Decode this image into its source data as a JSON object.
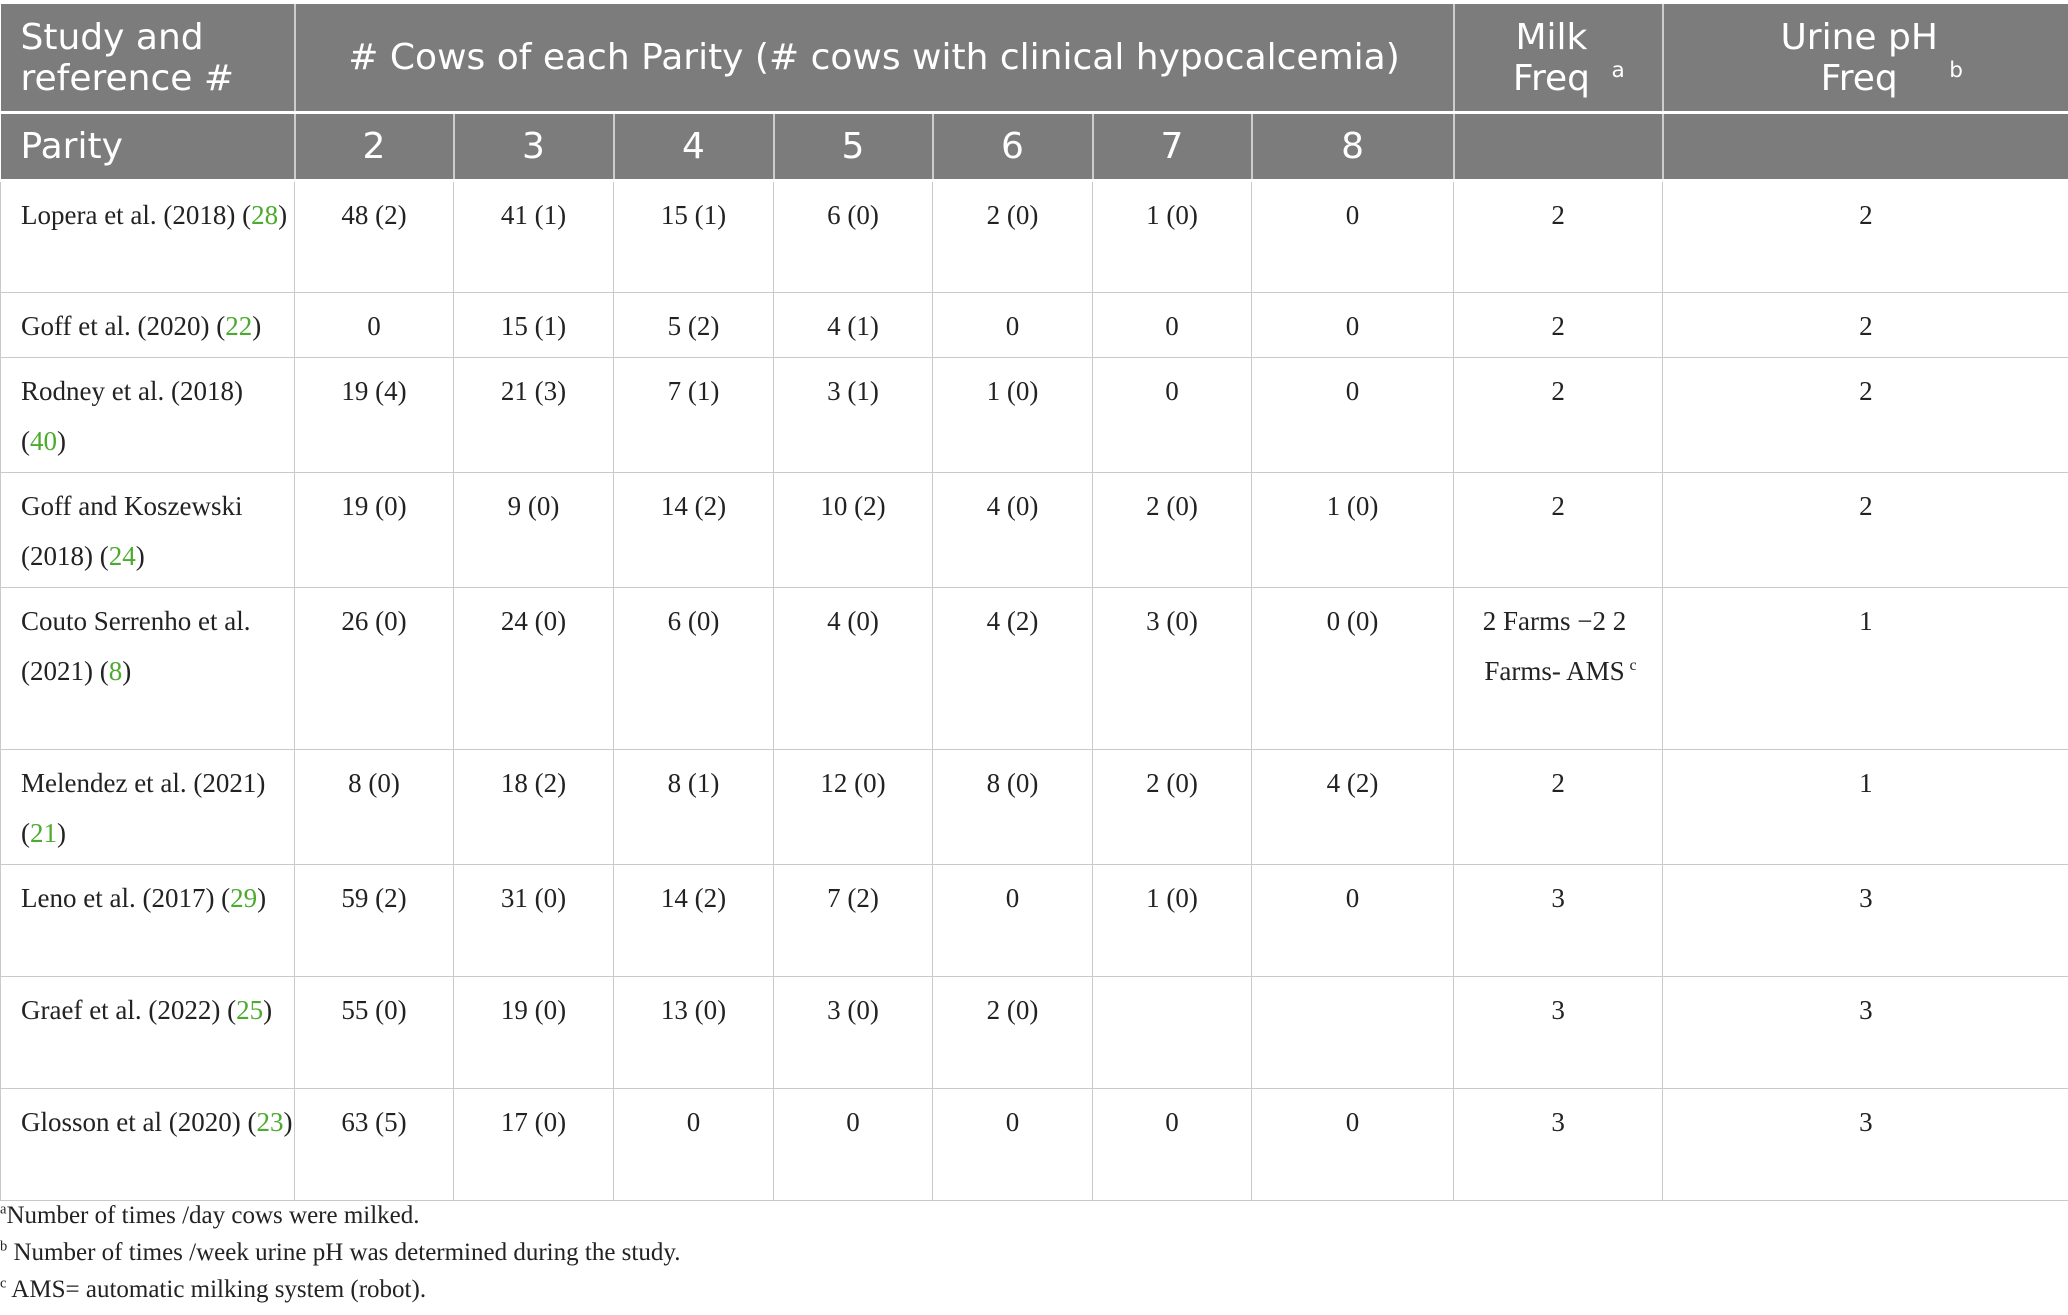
{
  "header": {
    "col1": "Study and reference #",
    "group": "# Cows of each Parity (# cows with clinical hypocalcemia)",
    "milk": "Milk Freq",
    "milk_sup": "a",
    "urine": "Urine pH Freq",
    "urine_sup": "b",
    "parity_label": "Parity",
    "parities": [
      "2",
      "3",
      "4",
      "5",
      "6",
      "7",
      "8"
    ]
  },
  "rows": [
    {
      "study": "Lopera et al. (2018) (",
      "ref": "28",
      "cells": [
        "48 (2)",
        "41 (1)",
        "15 (1)",
        "6 (0)",
        "2 (0)",
        "1 (0)",
        "0"
      ],
      "milk": "2",
      "urine": "2"
    },
    {
      "study": "Goff et al. (2020) (",
      "ref": "22",
      "cells": [
        "0",
        "15 (1)",
        "5 (2)",
        "4 (1)",
        "0",
        "0",
        "0"
      ],
      "milk": "2",
      "urine": "2"
    },
    {
      "study": "Rodney et al. (2018) (",
      "ref": "40",
      "cells": [
        "19 (4)",
        "21 (3)",
        "7 (1)",
        "3 (1)",
        "1 (0)",
        "0",
        "0"
      ],
      "milk": "2",
      "urine": "2"
    },
    {
      "study": "Goff and Koszewski (2018) (",
      "ref": "24",
      "cells": [
        "19 (0)",
        "9 (0)",
        "14 (2)",
        "10 (2)",
        "4 (0)",
        "2 (0)",
        "1 (0)"
      ],
      "milk": "2",
      "urine": "2"
    },
    {
      "study": "Couto Serrenho et al. (2021) (",
      "ref": "8",
      "cells": [
        "26 (0)",
        "24 (0)",
        "6 (0)",
        "4 (0)",
        "4 (2)",
        "3 (0)",
        "0 (0)"
      ],
      "milk": "2 Farms −2 2 Farms- AMS",
      "milk_sup": "c",
      "urine": "1"
    },
    {
      "study": "Melendez et al. (2021) (",
      "ref": "21",
      "cells": [
        "8 (0)",
        "18 (2)",
        "8 (1)",
        "12 (0)",
        "8 (0)",
        "2 (0)",
        "4 (2)"
      ],
      "milk": "2",
      "urine": "1"
    },
    {
      "study": "Leno et al. (2017) (",
      "ref": "29",
      "cells": [
        "59 (2)",
        "31 (0)",
        "14 (2)",
        "7 (2)",
        "0",
        "1 (0)",
        "0"
      ],
      "milk": "3",
      "urine": "3"
    },
    {
      "study": "Graef et al. (2022) (",
      "ref": "25",
      "cells": [
        "55 (0)",
        "19 (0)",
        "13 (0)",
        "3 (0)",
        "2 (0)",
        "",
        ""
      ],
      "milk": "3",
      "urine": "3"
    },
    {
      "study": "Glosson et al (2020) (",
      "ref": "23",
      "cells": [
        "63 (5)",
        "17 (0)",
        "0",
        "0",
        "0",
        "0",
        "0"
      ],
      "milk": "3",
      "urine": "3"
    }
  ],
  "close_paren": ")",
  "footnotes": [
    {
      "marker": "a",
      "text": "Number of times /day cows were milked."
    },
    {
      "marker": "b",
      "text": " Number of times /week urine pH was determined during the study."
    },
    {
      "marker": "c",
      "text": " AMS= automatic milking system (robot)."
    }
  ]
}
